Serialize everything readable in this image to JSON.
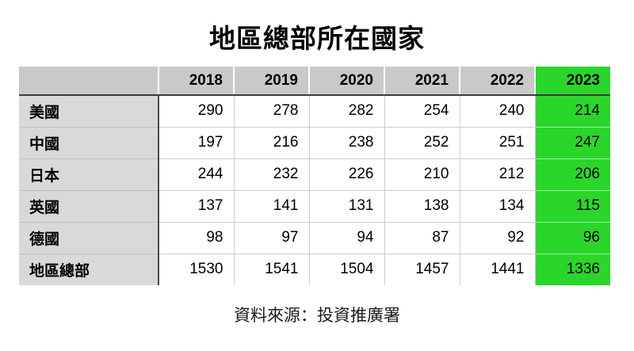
{
  "title": "地區總部所在國家",
  "source": "資料來源：投資推廣署",
  "table": {
    "label_header": "",
    "years": [
      "2018",
      "2019",
      "2020",
      "2021",
      "2022",
      "2023"
    ],
    "rows": [
      {
        "label": "美國",
        "values": [
          "290",
          "278",
          "282",
          "254",
          "240",
          "214"
        ]
      },
      {
        "label": "中國",
        "values": [
          "197",
          "216",
          "238",
          "252",
          "251",
          "247"
        ]
      },
      {
        "label": "日本",
        "values": [
          "244",
          "232",
          "226",
          "210",
          "212",
          "206"
        ]
      },
      {
        "label": "英國",
        "values": [
          "137",
          "141",
          "131",
          "138",
          "134",
          "115"
        ]
      },
      {
        "label": "德國",
        "values": [
          "98",
          "97",
          "94",
          "87",
          "92",
          "96"
        ]
      },
      {
        "label": "地區總部",
        "values": [
          "1530",
          "1541",
          "1504",
          "1457",
          "1441",
          "1336"
        ]
      }
    ]
  },
  "chart_data": {
    "type": "table",
    "title": "地區總部所在國家",
    "categories": [
      "2018",
      "2019",
      "2020",
      "2021",
      "2022",
      "2023"
    ],
    "series": [
      {
        "name": "美國",
        "values": [
          290,
          278,
          282,
          254,
          240,
          214
        ]
      },
      {
        "name": "中國",
        "values": [
          197,
          216,
          238,
          252,
          251,
          247
        ]
      },
      {
        "name": "日本",
        "values": [
          244,
          232,
          226,
          210,
          212,
          206
        ]
      },
      {
        "name": "英國",
        "values": [
          137,
          141,
          131,
          138,
          134,
          115
        ]
      },
      {
        "name": "德國",
        "values": [
          98,
          97,
          94,
          87,
          92,
          96
        ]
      },
      {
        "name": "地區總部",
        "values": [
          1530,
          1541,
          1504,
          1457,
          1441,
          1336
        ]
      }
    ],
    "highlight_column": "2023",
    "annotation": "資料來源：投資推廣署"
  },
  "colors": {
    "highlight_green": "#2BD62B",
    "header_gray": "#c9c9c9",
    "label_gray": "#d9d9d9"
  }
}
